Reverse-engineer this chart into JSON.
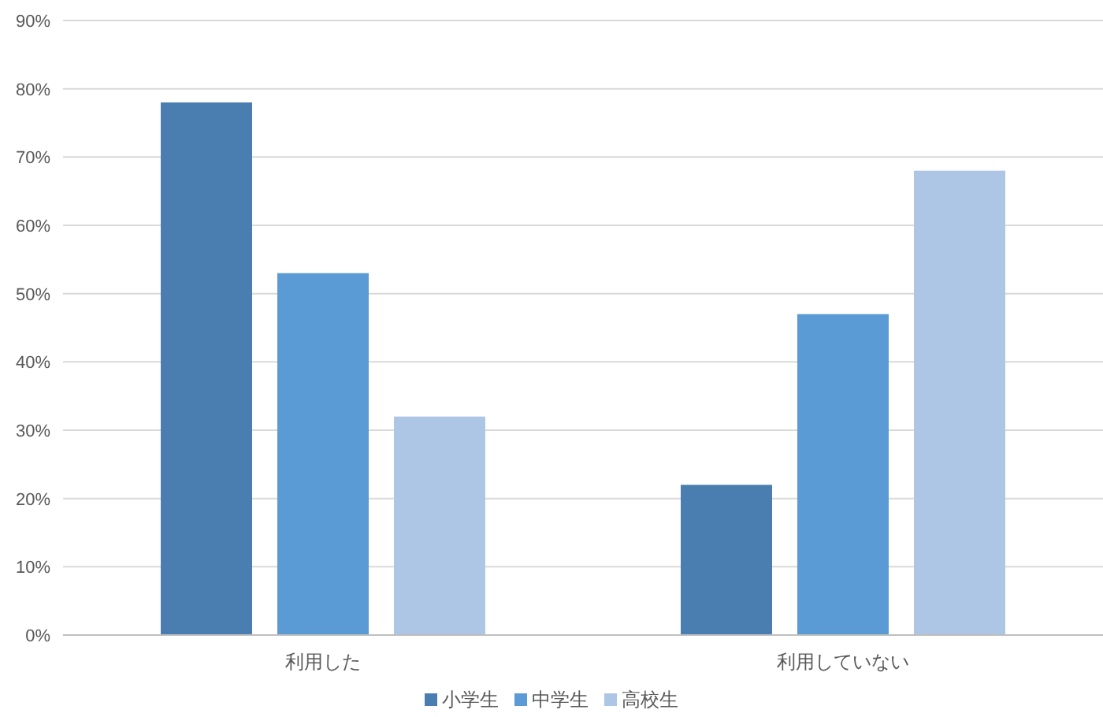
{
  "chart_data": {
    "type": "bar",
    "categories": [
      "利用した",
      "利用していない"
    ],
    "series": [
      {
        "name": "小学生",
        "color": "#4a7eb0",
        "values": [
          78,
          22
        ]
      },
      {
        "name": "中学生",
        "color": "#5b9bd5",
        "values": [
          53,
          47
        ]
      },
      {
        "name": "高校生",
        "color": "#adc6e5",
        "values": [
          32,
          68
        ]
      }
    ],
    "ylim": [
      0,
      90
    ],
    "yticks": [
      {
        "value": 0,
        "label": "0%"
      },
      {
        "value": 10,
        "label": "10%"
      },
      {
        "value": 20,
        "label": "20%"
      },
      {
        "value": 30,
        "label": "30%"
      },
      {
        "value": 40,
        "label": "40%"
      },
      {
        "value": 50,
        "label": "50%"
      },
      {
        "value": 60,
        "label": "60%"
      },
      {
        "value": 70,
        "label": "70%"
      },
      {
        "value": 80,
        "label": "80%"
      },
      {
        "value": 90,
        "label": "90%"
      }
    ],
    "grid": "y",
    "legend": "bottom"
  }
}
